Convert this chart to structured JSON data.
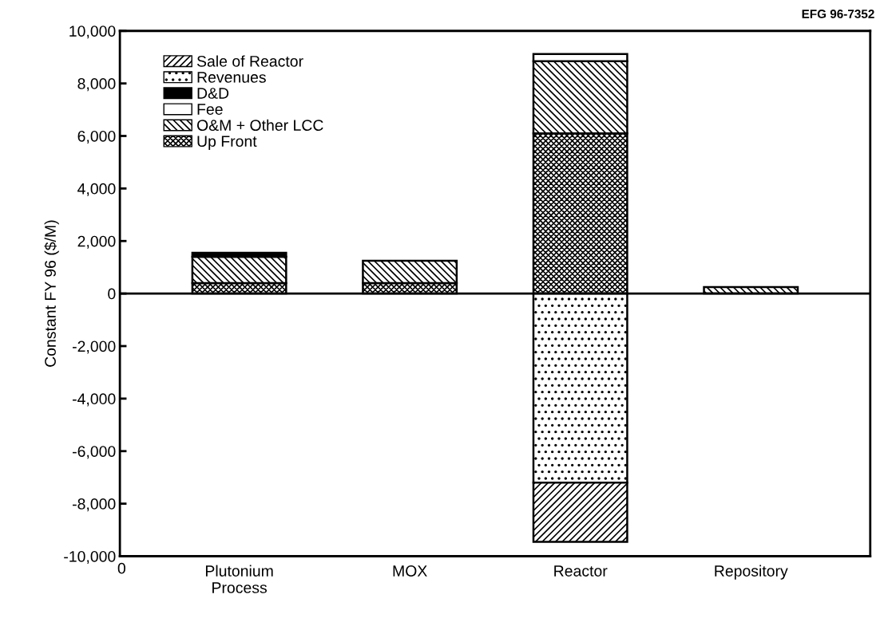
{
  "chart_data": {
    "type": "bar",
    "stacked": true,
    "ylabel": "Constant FY 96 ($/M)",
    "categories": [
      "Plutonium\nProcess",
      "MOX",
      "Reactor",
      "Repository"
    ],
    "series": [
      {
        "name": "Up Front",
        "color": "#000000",
        "values": [
          400,
          400,
          6100,
          null
        ]
      },
      {
        "name": "O&M + Other LCC",
        "color": "#000000",
        "values": [
          1000,
          850,
          2750,
          250
        ]
      },
      {
        "name": "Fee",
        "color": "#ffffff",
        "values": [
          null,
          null,
          270,
          null
        ]
      },
      {
        "name": "D&D",
        "color": "#000000",
        "values": [
          150,
          null,
          null,
          null
        ]
      },
      {
        "name": "Revenues",
        "color": "#000000",
        "values": [
          null,
          null,
          -7200,
          null
        ]
      },
      {
        "name": "Sale of Reactor",
        "color": "#000000",
        "values": [
          null,
          null,
          -2250,
          null
        ]
      }
    ],
    "ylim": [
      -10000,
      10000
    ],
    "yticks": [
      {
        "value": -10000,
        "label": "-10,000"
      },
      {
        "value": -8000,
        "label": "-8,000"
      },
      {
        "value": -6000,
        "label": "-6,000"
      },
      {
        "value": -4000,
        "label": "-4,000"
      },
      {
        "value": -2000,
        "label": "-2,000"
      },
      0,
      {
        "value": 2000,
        "label": "2,000"
      },
      {
        "value": 4000,
        "label": "4,000"
      },
      {
        "value": 6000,
        "label": "6,000"
      },
      {
        "value": 8000,
        "label": "8,000"
      },
      {
        "value": 10000,
        "label": "10,000"
      }
    ],
    "ref_lines": [
      {
        "axis": "y",
        "value": 0,
        "color": "#000000"
      }
    ],
    "annotations": [
      "EFG 96-7352",
      "0"
    ],
    "legend": "top left",
    "grid": false
  }
}
